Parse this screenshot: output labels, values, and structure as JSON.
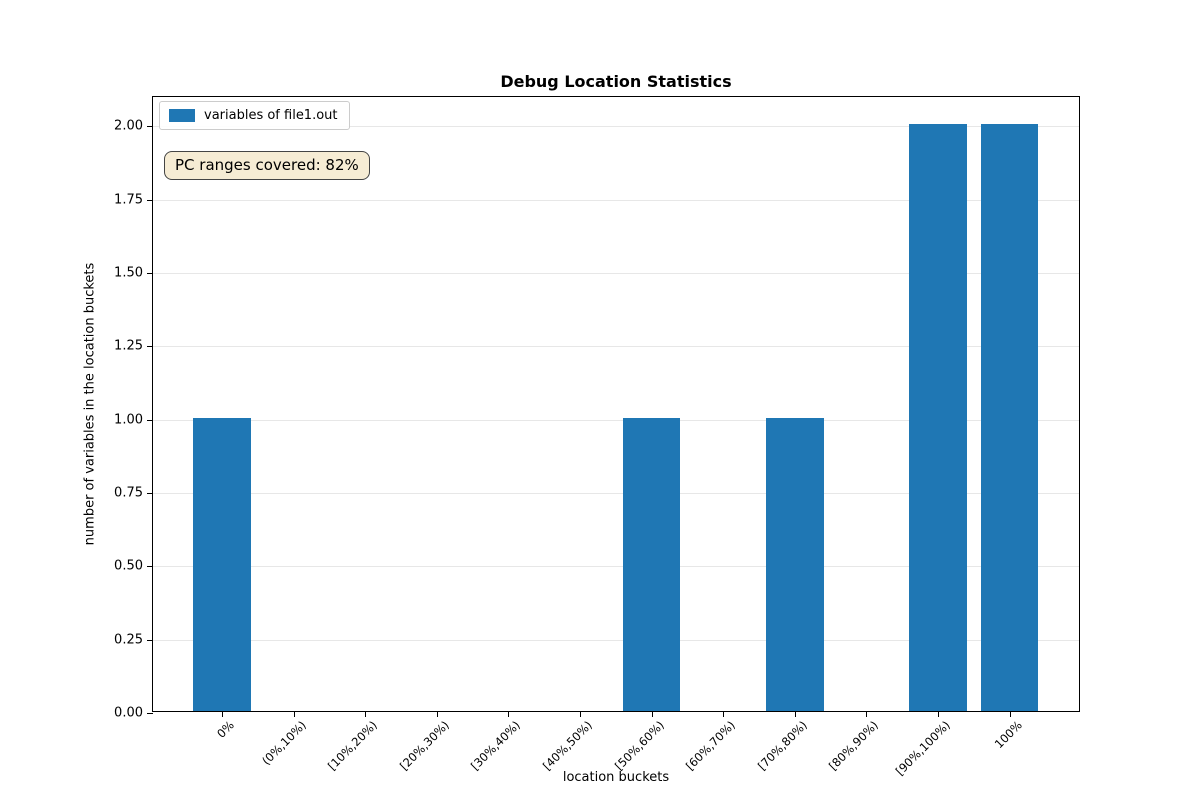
{
  "chart_data": {
    "type": "bar",
    "title": "Debug Location Statistics",
    "xlabel": "location buckets",
    "ylabel": "number of variables in the location buckets",
    "categories": [
      "0%",
      "(0%,10%)",
      "[10%,20%)",
      "[20%,30%)",
      "[30%,40%)",
      "[40%,50%)",
      "[50%,60%)",
      "[60%,70%)",
      "[70%,80%)",
      "[80%,90%)",
      "[90%,100%)",
      "100%"
    ],
    "values": [
      1,
      0,
      0,
      0,
      0,
      0,
      1,
      0,
      1,
      0,
      2,
      2
    ],
    "yticks": [
      0,
      0.25,
      0.5,
      0.75,
      1.0,
      1.25,
      1.5,
      1.75,
      2.0
    ],
    "ytick_labels": [
      "0.00",
      "0.25",
      "0.50",
      "0.75",
      "1.00",
      "1.25",
      "1.50",
      "1.75",
      "2.00"
    ],
    "ylim": [
      0,
      2.1
    ],
    "grid": "horizontal",
    "bar_color": "#1f77b4",
    "legend": {
      "position": "upper-left",
      "entries": [
        {
          "label": "variables of file1.out",
          "color": "#1f77b4"
        }
      ]
    },
    "annotation": {
      "text": "PC ranges covered: 82%",
      "bg": "#f6ecd4",
      "border": "#444444"
    }
  }
}
